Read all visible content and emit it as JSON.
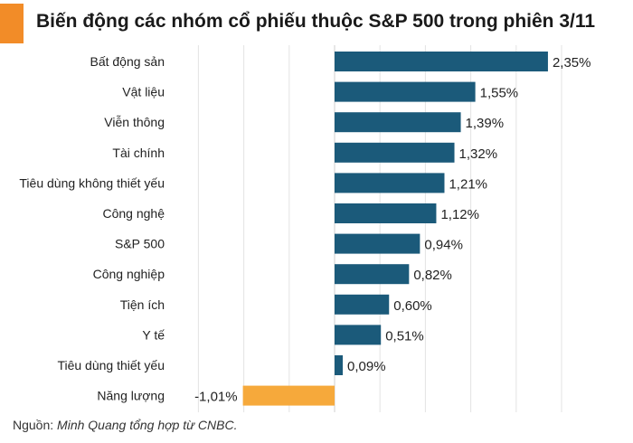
{
  "title": "Biến động các nhóm cổ phiếu thuộc S&P 500 trong phiên 3/11",
  "source": {
    "prefix": "Nguồn: ",
    "text": "Minh Quang tổng hợp từ CNBC."
  },
  "colors": {
    "accent": "#f28c28",
    "positive_bar": "#1b5a7a",
    "negative_bar": "#f6a93b",
    "grid": "#e3e3e3"
  },
  "chart_data": {
    "type": "bar",
    "orientation": "horizontal",
    "categories": [
      "Bất động sản",
      "Vật liệu",
      "Viễn thông",
      "Tài chính",
      "Tiêu dùng không thiết yếu",
      "Công nghệ",
      "S&P 500",
      "Công nghiệp",
      "Tiện ích",
      "Y tế",
      "Tiêu dùng thiết yếu",
      "Năng lượng"
    ],
    "values": [
      2.35,
      1.55,
      1.39,
      1.32,
      1.21,
      1.12,
      0.94,
      0.82,
      0.6,
      0.51,
      0.09,
      -1.01
    ],
    "labels": [
      "2,35%",
      "1,55%",
      "1,39%",
      "1,32%",
      "1,21%",
      "1,12%",
      "0,94%",
      "0,82%",
      "0,60%",
      "0,51%",
      "0,09%",
      "-1,01%"
    ],
    "xlim": [
      -1.01,
      2.35
    ],
    "grid": true,
    "legend": "none"
  }
}
